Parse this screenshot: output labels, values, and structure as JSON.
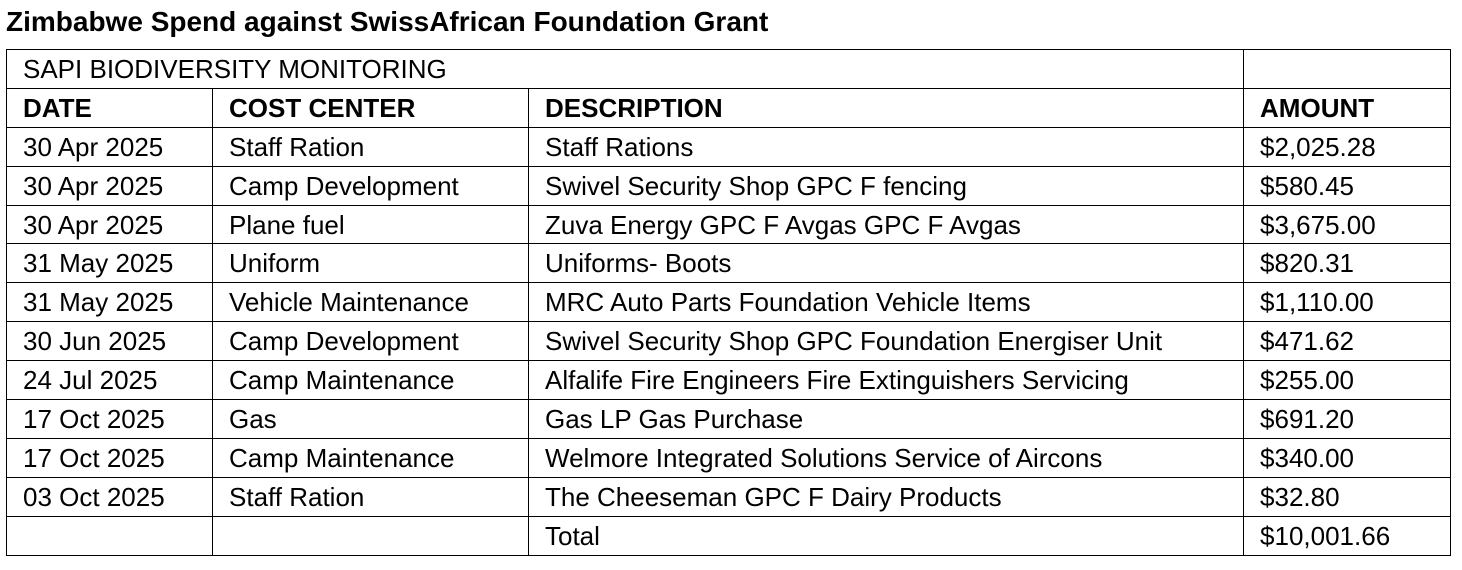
{
  "document": {
    "title": "Zimbabwe Spend against SwissAfrican Foundation Grant"
  },
  "table": {
    "section": "SAPI BIODIVERSITY MONITORING",
    "headers": {
      "date": "DATE",
      "cost_center": "COST CENTER",
      "description": "DESCRIPTION",
      "amount": "AMOUNT"
    },
    "rows": [
      {
        "date": "30 Apr 2025",
        "cost_center": "Staff Ration",
        "description": "Staff Rations",
        "amount": "$2,025.28"
      },
      {
        "date": "30 Apr 2025",
        "cost_center": "Camp Development",
        "description": "Swivel Security Shop GPC F fencing",
        "amount": "$580.45"
      },
      {
        "date": "30 Apr 2025",
        "cost_center": "Plane fuel",
        "description": " Zuva Energy GPC F Avgas GPC F Avgas",
        "amount": "$3,675.00"
      },
      {
        "date": "31 May 2025",
        "cost_center": "Uniform",
        "description": "Uniforms- Boots",
        "amount": "$820.31"
      },
      {
        "date": "31 May 2025",
        "cost_center": "Vehicle Maintenance",
        "description": "MRC Auto Parts Foundation Vehicle Items",
        "amount": "$1,110.00"
      },
      {
        "date": "30 Jun 2025",
        "cost_center": "Camp Development",
        "description": "Swivel Security Shop GPC Foundation Energiser Unit",
        "amount": "$471.62"
      },
      {
        "date": "24 Jul 2025",
        "cost_center": "Camp Maintenance",
        "description": "Alfalife Fire Engineers Fire Extinguishers Servicing",
        "amount": "$255.00"
      },
      {
        "date": "17 Oct 2025",
        "cost_center": "Gas",
        "description": "Gas LP Gas Purchase",
        "amount": "$691.20"
      },
      {
        "date": "17 Oct 2025",
        "cost_center": "Camp Maintenance",
        "description": "Welmore Integrated Solutions Service of Aircons",
        "amount": "$340.00"
      },
      {
        "date": "03 Oct 2025",
        "cost_center": "Staff Ration",
        "description": "The Cheeseman GPC F Dairy Products",
        "amount": "$32.80"
      }
    ],
    "total": {
      "label": "Total",
      "value": "$10,001.66"
    }
  }
}
